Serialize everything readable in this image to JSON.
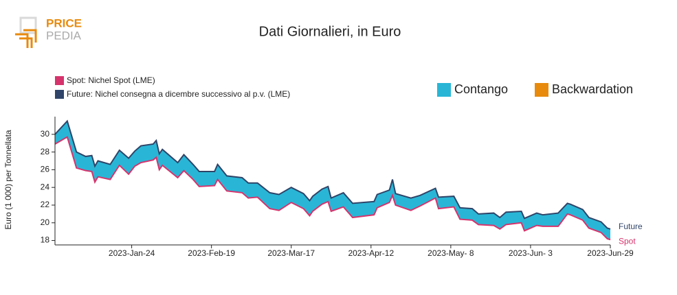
{
  "logo": {
    "line1": "PRICE",
    "line2": "PEDIA"
  },
  "chart_data": {
    "type": "line",
    "title": "Dati Giornalieri, in Euro",
    "y_label": "Euro (1 000) per Tonnellata",
    "x": [
      "2022-12-30",
      "2023-01-03",
      "2023-01-06",
      "2023-01-09",
      "2023-01-11",
      "2023-01-12",
      "2023-01-13",
      "2023-01-17",
      "2023-01-20",
      "2023-01-23",
      "2023-01-25",
      "2023-01-27",
      "2023-01-31",
      "2023-02-01",
      "2023-02-02",
      "2023-02-03",
      "2023-02-08",
      "2023-02-10",
      "2023-02-13",
      "2023-02-15",
      "2023-02-20",
      "2023-02-21",
      "2023-02-24",
      "2023-03-01",
      "2023-03-03",
      "2023-03-06",
      "2023-03-10",
      "2023-03-13",
      "2023-03-17",
      "2023-03-21",
      "2023-03-23",
      "2023-03-24",
      "2023-03-27",
      "2023-03-29",
      "2023-03-30",
      "2023-04-03",
      "2023-04-06",
      "2023-04-13",
      "2023-04-14",
      "2023-04-18",
      "2023-04-19",
      "2023-04-20",
      "2023-04-25",
      "2023-04-28",
      "2023-05-03",
      "2023-05-04",
      "2023-05-09",
      "2023-05-11",
      "2023-05-15",
      "2023-05-17",
      "2023-05-22",
      "2023-05-24",
      "2023-05-26",
      "2023-05-31",
      "2023-06-01",
      "2023-06-05",
      "2023-06-07",
      "2023-06-12",
      "2023-06-15",
      "2023-06-16",
      "2023-06-20",
      "2023-06-22",
      "2023-06-26",
      "2023-06-28",
      "2023-06-29"
    ],
    "series": [
      {
        "name": "Future: Nichel consegna a dicembre successivo al p.v. (LME)",
        "end_label": "Future",
        "color": "#2f4468",
        "values": [
          30.0,
          31.5,
          28.0,
          27.5,
          27.6,
          26.4,
          27.0,
          26.6,
          28.2,
          27.3,
          28.1,
          28.7,
          28.9,
          29.3,
          27.8,
          28.3,
          26.8,
          27.7,
          26.6,
          25.8,
          25.8,
          26.6,
          25.3,
          25.1,
          24.5,
          24.5,
          23.4,
          23.2,
          24.0,
          23.3,
          22.5,
          23.0,
          23.8,
          24.1,
          22.8,
          23.4,
          22.2,
          22.4,
          23.2,
          23.7,
          24.9,
          23.3,
          22.8,
          23.1,
          23.9,
          22.9,
          23.0,
          21.7,
          21.6,
          21.0,
          21.1,
          20.6,
          21.2,
          21.3,
          20.5,
          21.1,
          20.9,
          21.1,
          22.2,
          22.1,
          21.5,
          20.6,
          20.1,
          19.4,
          19.3
        ]
      },
      {
        "name": "Spot: Nichel Spot (LME)",
        "end_label": "Spot",
        "color": "#d6336c",
        "values": [
          28.9,
          29.7,
          26.2,
          25.9,
          25.8,
          24.6,
          25.2,
          24.9,
          26.5,
          25.5,
          26.4,
          26.8,
          27.1,
          27.4,
          26.0,
          26.5,
          25.1,
          25.9,
          24.9,
          24.1,
          24.2,
          24.9,
          23.6,
          23.4,
          22.8,
          22.9,
          21.6,
          21.4,
          22.3,
          21.6,
          20.8,
          21.3,
          22.1,
          22.4,
          21.3,
          21.8,
          20.6,
          20.9,
          21.7,
          22.3,
          23.1,
          22.0,
          21.4,
          21.9,
          22.8,
          21.6,
          21.8,
          20.4,
          20.3,
          19.8,
          19.7,
          19.3,
          19.8,
          20.0,
          19.1,
          19.7,
          19.6,
          19.6,
          21.0,
          20.9,
          20.3,
          19.4,
          18.9,
          18.2,
          18.1
        ]
      }
    ],
    "fills": [
      {
        "name": "Contango",
        "color": "#29b6d6"
      },
      {
        "name": "Backwardation",
        "color": "#e88a0c"
      }
    ],
    "xlim": [
      "2022-12-30",
      "2023-06-29"
    ],
    "xticks": [
      {
        "value": "2023-01-24",
        "label": "2023-Jan-24"
      },
      {
        "value": "2023-02-19",
        "label": "2023-Feb-19"
      },
      {
        "value": "2023-03-17",
        "label": "2023-Mar-17"
      },
      {
        "value": "2023-04-12",
        "label": "2023-Apr-12"
      },
      {
        "value": "2023-05-08",
        "label": "2023-May- 8"
      },
      {
        "value": "2023-06-03",
        "label": "2023-Jun- 3"
      },
      {
        "value": "2023-06-29",
        "label": "2023-Jun-29"
      }
    ],
    "ylim": [
      17.5,
      32
    ],
    "yticks": [
      18,
      20,
      22,
      24,
      26,
      28,
      30
    ]
  }
}
